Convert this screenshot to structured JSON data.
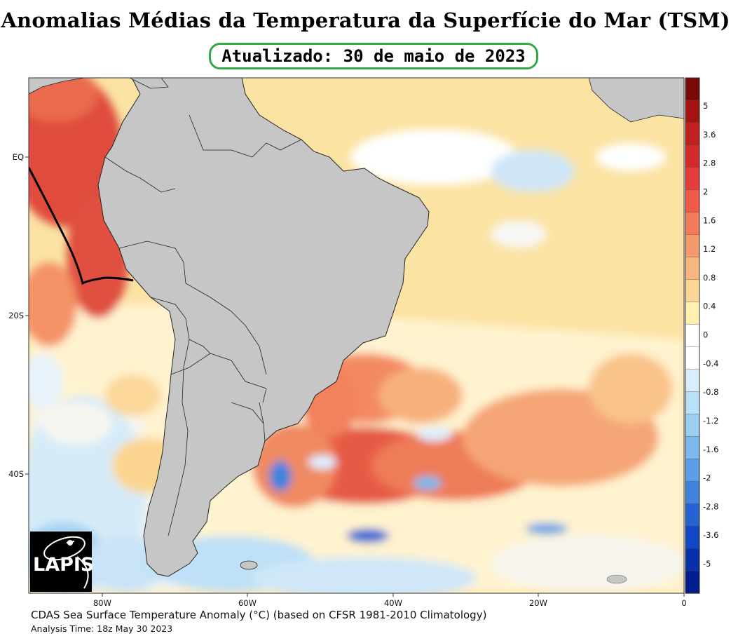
{
  "title": "Anomalias Médias da Temperatura da Superfície do Mar (TSM)",
  "updated": "Atualizado: 30 de maio de 2023",
  "axes": {
    "lon_labels": [
      "80W",
      "60W",
      "40W",
      "20W",
      "0"
    ],
    "lat_labels": [
      "EQ",
      "20S",
      "40S"
    ]
  },
  "colorbar": {
    "labels": [
      "5",
      "3.6",
      "2.8",
      "2",
      "1.6",
      "1.2",
      "0.8",
      "0.4",
      "0",
      "-0.4",
      "-0.8",
      "-1.2",
      "-1.6",
      "-2",
      "-2.8",
      "-3.6",
      "-5"
    ],
    "colors": [
      "#7a0a0a",
      "#a51313",
      "#c21f1f",
      "#d52a2a",
      "#e63c3c",
      "#f05a4a",
      "#f37a5a",
      "#f59a6c",
      "#f8b77f",
      "#fbd696",
      "#fdf0b0",
      "#ffffff",
      "#ffffff",
      "#d8eefb",
      "#b8e0f7",
      "#9bd0f3",
      "#7cb9ee",
      "#5c9fe6",
      "#3f83dd",
      "#2563d3",
      "#1146c4",
      "#0731aa",
      "#021e8e"
    ]
  },
  "logo": {
    "text": "LAPIS"
  },
  "caption": "CDAS Sea Surface Temperature Anomaly (°C) (based on CFSR 1981-2010 Climatology)",
  "analysis_time": "Analysis Time: 18z May 30 2023"
}
